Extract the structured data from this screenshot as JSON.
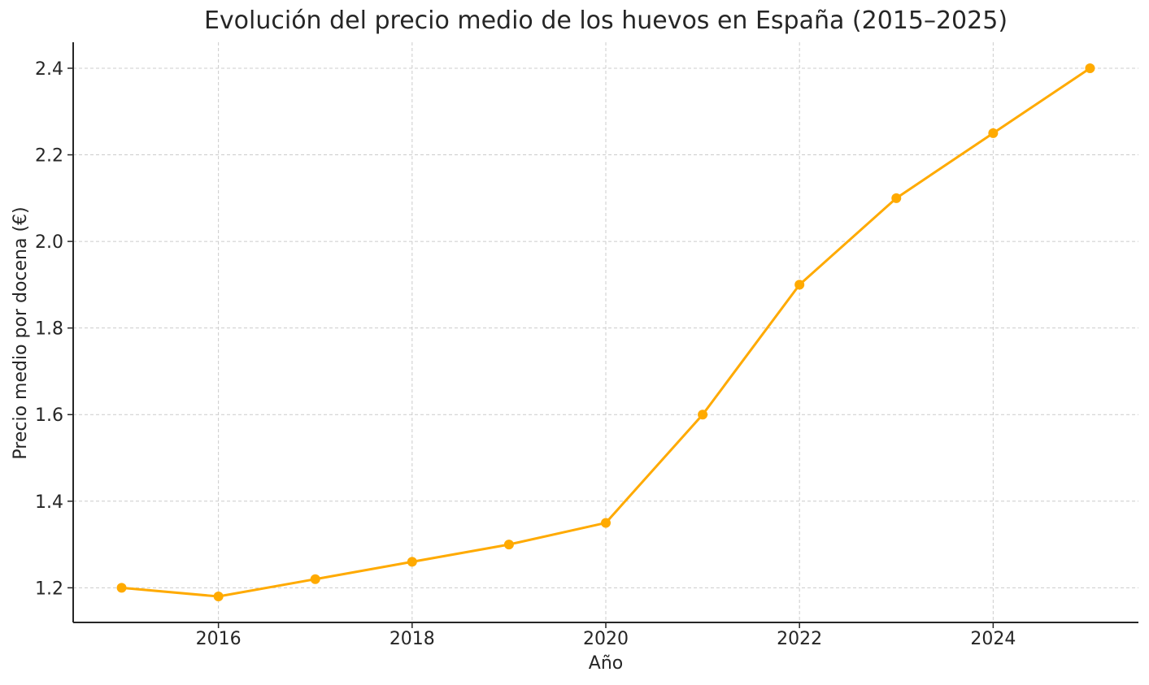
{
  "chart_data": {
    "type": "line",
    "title": "Evolución del precio medio de los huevos en España (2015–2025)",
    "xlabel": "Año",
    "ylabel": "Precio medio por docena (€)",
    "x": [
      2015,
      2016,
      2017,
      2018,
      2019,
      2020,
      2021,
      2022,
      2023,
      2024,
      2025
    ],
    "series": [
      {
        "values": [
          1.2,
          1.18,
          1.22,
          1.26,
          1.3,
          1.35,
          1.6,
          1.9,
          2.1,
          2.25,
          2.4
        ]
      }
    ],
    "xlim": [
      2014.5,
      2025.5
    ],
    "ylim": [
      1.12,
      2.46
    ],
    "x_ticks": [
      "2016",
      "2018",
      "2020",
      "2022",
      "2024"
    ],
    "y_ticks": [
      "1.2",
      "1.4",
      "1.6",
      "1.8",
      "2.0",
      "2.2",
      "2.4"
    ],
    "grid": true,
    "line_color": "#FFAA00"
  }
}
